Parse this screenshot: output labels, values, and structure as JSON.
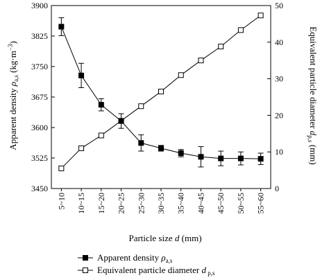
{
  "chart_data": {
    "type": "line",
    "categories": [
      "5~10",
      "10~15",
      "15~20",
      "20~25",
      "25~30",
      "30~35",
      "35~40",
      "40~45",
      "45~50",
      "50~55",
      "55~60"
    ],
    "xlabel": "Particle size d (mm)",
    "ylabel_left": "Apparent density ρa,s (kg·m⁻³)",
    "ylabel_right": "Equivalent particle diameter dp,s (mm)",
    "ylim_left": [
      3450,
      3900
    ],
    "yticks_left": [
      3450,
      3525,
      3600,
      3675,
      3750,
      3825,
      3900
    ],
    "ylim_right": [
      0,
      50
    ],
    "yticks_right": [
      0,
      10,
      20,
      30,
      40,
      50
    ],
    "grid": false,
    "legend_position": "bottom",
    "series": [
      {
        "name": "Apparent density ρa,s",
        "axis": "left",
        "marker": "filled-square",
        "values": [
          3848,
          3728,
          3656,
          3616,
          3562,
          3549,
          3537,
          3528,
          3524,
          3524,
          3523
        ],
        "error": [
          22,
          30,
          15,
          18,
          20,
          7,
          9,
          25,
          18,
          16,
          14
        ]
      },
      {
        "name": "Equivalent particle diameter dp,s",
        "axis": "right",
        "marker": "open-square",
        "values": [
          5.5,
          11,
          14.5,
          18.5,
          22.5,
          26.5,
          31,
          35,
          38.8,
          43.3,
          47.3
        ]
      }
    ]
  },
  "legend": {
    "density_main": "Apparent density ",
    "density_sym": "ρ",
    "density_sub": "a,s",
    "diameter_main": "Equivalent particle diameter ",
    "diameter_sym": "d",
    "diameter_sub": " p,s"
  },
  "axis_titles": {
    "x_main": "Particle size ",
    "x_var": "d",
    "x_unit": " (mm)",
    "left_main": "Apparent density ",
    "left_sym": "ρ",
    "left_sub": "a,s",
    "left_unit_open": " (kg·m",
    "left_unit_exp": "−3",
    "left_unit_close": ")",
    "right_main": "Equivalent particle diameter ",
    "right_sym": "d",
    "right_sub": "p,s",
    "right_unit": " (mm)"
  }
}
